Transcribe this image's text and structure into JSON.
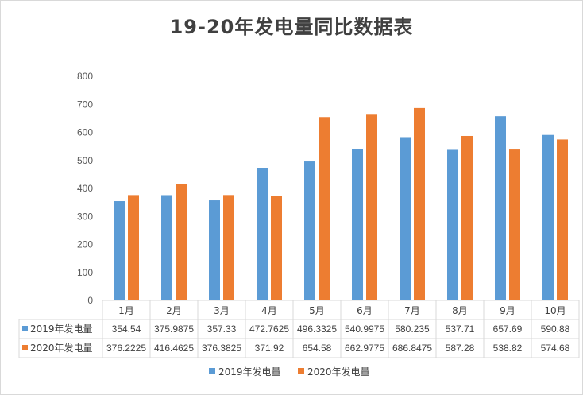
{
  "chart_data": {
    "type": "bar",
    "title": "19-20年发电量同比数据表",
    "categories": [
      "1月",
      "2月",
      "3月",
      "4月",
      "5月",
      "6月",
      "7月",
      "8月",
      "9月",
      "10月"
    ],
    "ylim": [
      0,
      800
    ],
    "yticks": [
      "0",
      "100",
      "200",
      "300",
      "400",
      "500",
      "600",
      "700",
      "800"
    ],
    "grid": false,
    "legend": "bottom",
    "data_table": true,
    "series": [
      {
        "name": "2019年发电量",
        "color": "#5b9bd5",
        "values": [
          354.54,
          375.9875,
          357.33,
          472.7625,
          496.3325,
          540.9975,
          580.235,
          537.71,
          657.69,
          590.88
        ],
        "labels": [
          "354.54",
          "375.9875",
          "357.33",
          "472.7625",
          "496.3325",
          "540.9975",
          "580.235",
          "537.71",
          "657.69",
          "590.88"
        ]
      },
      {
        "name": "2020年发电量",
        "color": "#ed7d31",
        "values": [
          376.2225,
          416.4625,
          376.3825,
          371.92,
          654.58,
          662.9775,
          686.8475,
          587.28,
          538.82,
          574.68
        ],
        "labels": [
          "376.2225",
          "416.4625",
          "376.3825",
          "371.92",
          "654.58",
          "662.9775",
          "686.8475",
          "587.28",
          "538.82",
          "574.68"
        ]
      }
    ]
  }
}
